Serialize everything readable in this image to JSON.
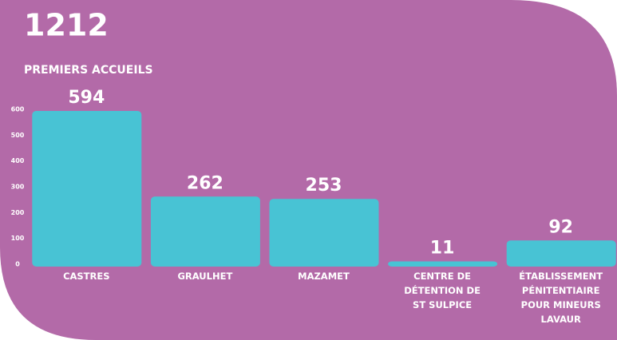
{
  "chart_data": {
    "type": "bar",
    "title": "1212",
    "subtitle": "PREMIERS ACCUEILS",
    "categories": [
      "CASTRES",
      "GRAULHET",
      "MAZAMET",
      "CENTRE DE DÉTENTION DE ST SULPICE",
      "ÉTABLISSEMENT PÉNITENTIAIRE POUR MINEURS LAVAUR"
    ],
    "values": [
      594,
      262,
      253,
      11,
      92
    ],
    "color": "#48c3d4",
    "background": "#b36aa8",
    "ylim": [
      0,
      600
    ],
    "yticks": [
      0,
      100,
      200,
      300,
      400,
      500,
      600
    ],
    "grid": false
  }
}
